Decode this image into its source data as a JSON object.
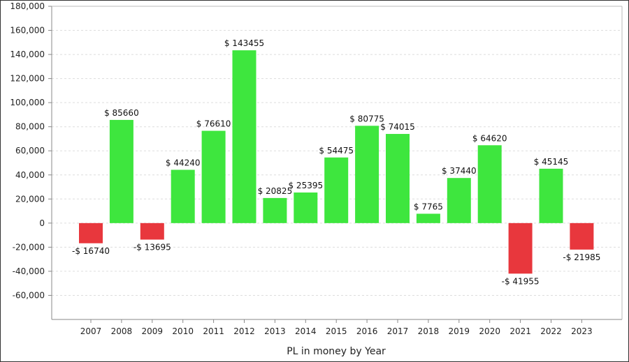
{
  "chart_data": {
    "type": "bar",
    "title": "",
    "xlabel": "PL in money by Year",
    "ylabel": "",
    "categories": [
      "2007",
      "2008",
      "2009",
      "2010",
      "2011",
      "2012",
      "2013",
      "2014",
      "2015",
      "2016",
      "2017",
      "2018",
      "2019",
      "2020",
      "2021",
      "2022",
      "2023"
    ],
    "values": [
      -16740,
      85660,
      -13695,
      44240,
      76610,
      143455,
      20825,
      25395,
      54475,
      80775,
      74015,
      7765,
      37440,
      64620,
      -41955,
      45145,
      -21985
    ],
    "data_labels": [
      "-$ 16740",
      "$ 85660",
      "-$ 13695",
      "$ 44240",
      "$ 76610",
      "$ 143455",
      "$ 20825",
      "$ 25395",
      "$ 54475",
      "$ 80775",
      "$ 74015",
      "$ 7765",
      "$ 37440",
      "$ 64620",
      "-$ 41955",
      "$ 45145",
      "-$ 21985"
    ],
    "ylim": [
      -80000,
      180000
    ],
    "yticks": [
      -60000,
      -40000,
      -20000,
      0,
      20000,
      40000,
      60000,
      80000,
      100000,
      120000,
      140000,
      160000,
      180000
    ],
    "ytick_labels": [
      "-60,000",
      "-40,000",
      "-20,000",
      "0",
      "20,000",
      "40,000",
      "60,000",
      "80,000",
      "100,000",
      "120,000",
      "140,000",
      "160,000",
      "180,000"
    ],
    "grid": true,
    "legend": "none",
    "colors": {
      "positive": "#3ee63e",
      "negative": "#e8373d",
      "grid": "#dddddd",
      "axis": "#888888"
    }
  }
}
